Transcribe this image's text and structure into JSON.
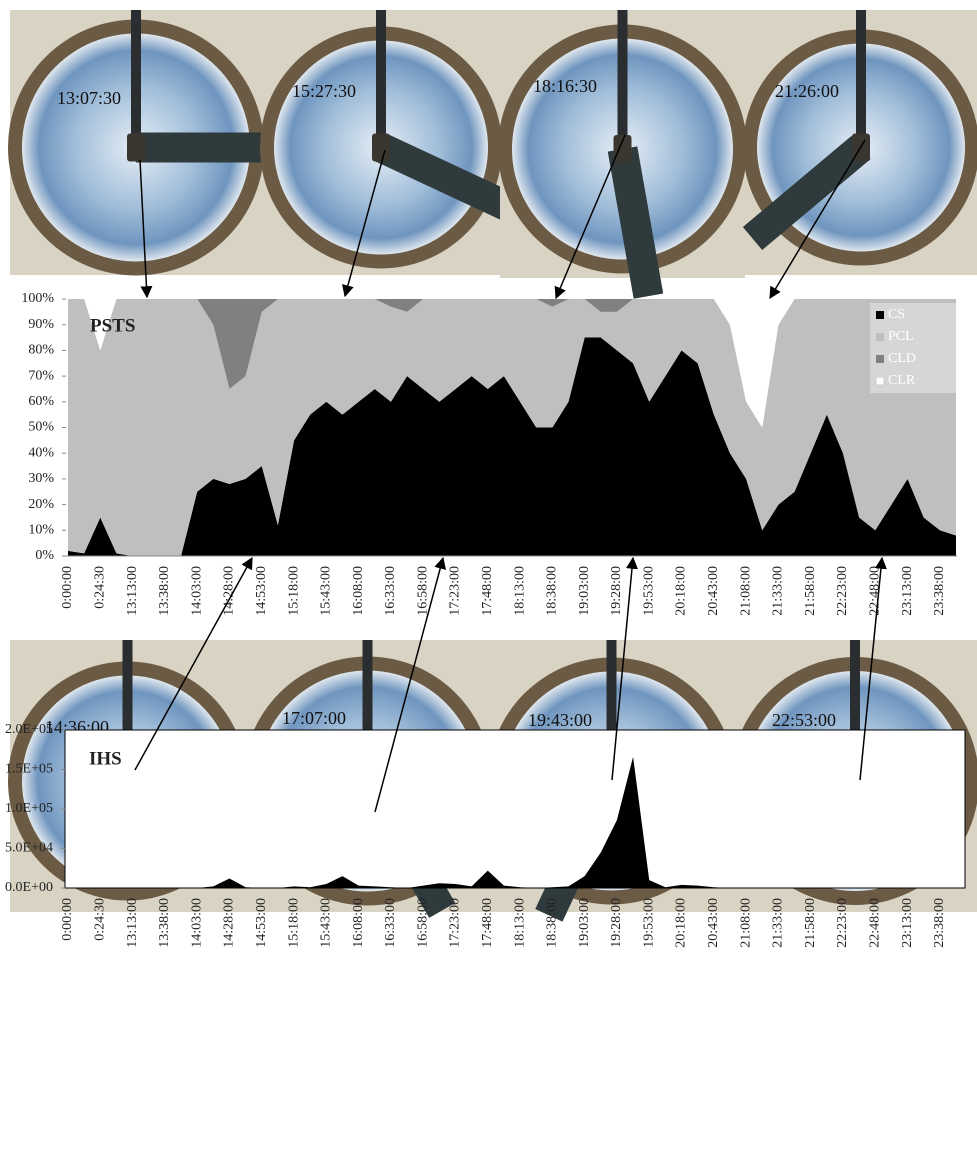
{
  "images_top": [
    "13:07:30",
    "15:27:30",
    "18:16:30",
    "21:26:00"
  ],
  "images_bottom": [
    "14:36:00",
    "17:07:00",
    "19:43:00",
    "22:53:00"
  ],
  "chart_data": [
    {
      "type": "stacked_area",
      "title": "PSTS",
      "categories": [
        "0:00:00",
        null,
        "0:24:30",
        null,
        "13:13:00",
        null,
        "13:38:00",
        null,
        "14:03:00",
        null,
        "14:28:00",
        null,
        "14:53:00",
        null,
        "15:18:00",
        null,
        "15:43:00",
        null,
        "16:08:00",
        null,
        "16:33:00",
        null,
        "16:58:00",
        null,
        "17:23:00",
        null,
        "17:48:00",
        null,
        "18:13:00",
        null,
        "18:38:00",
        null,
        "19:03:00",
        null,
        "19:28:00",
        null,
        "19:53:00",
        null,
        "20:18:00",
        null,
        "20:43:00",
        null,
        "21:08:00",
        null,
        "21:33:00",
        null,
        "21:58:00",
        null,
        "22:23:00",
        null,
        "22:48:00",
        null,
        "23:13:00",
        null,
        "23:38:00",
        null
      ],
      "series": [
        {
          "name": "CS",
          "color": "#000000",
          "values": [
            2,
            1,
            15,
            1,
            0,
            0,
            0,
            0,
            25,
            30,
            28,
            30,
            35,
            12,
            45,
            55,
            60,
            55,
            60,
            65,
            60,
            70,
            65,
            60,
            65,
            70,
            65,
            70,
            60,
            50,
            50,
            60,
            85,
            85,
            80,
            75,
            60,
            70,
            80,
            75,
            55,
            40,
            30,
            10,
            20,
            25,
            40,
            55,
            40,
            15,
            10,
            20,
            30,
            15,
            10,
            8
          ]
        },
        {
          "name": "PCL",
          "color": "#bfbfbf",
          "values": [
            98,
            99,
            65,
            99,
            100,
            100,
            100,
            100,
            75,
            60,
            37,
            40,
            60,
            88,
            55,
            45,
            40,
            45,
            40,
            35,
            37,
            25,
            35,
            40,
            35,
            30,
            35,
            30,
            40,
            50,
            47,
            40,
            15,
            10,
            15,
            25,
            40,
            30,
            20,
            25,
            45,
            50,
            30,
            40,
            70,
            75,
            60,
            45,
            60,
            85,
            90,
            80,
            70,
            85,
            90,
            92
          ]
        },
        {
          "name": "CLD",
          "color": "#808080",
          "values": [
            0,
            0,
            0,
            0,
            0,
            0,
            0,
            0,
            0,
            10,
            35,
            30,
            5,
            0,
            0,
            0,
            0,
            0,
            0,
            0,
            3,
            5,
            0,
            0,
            0,
            0,
            0,
            0,
            0,
            0,
            3,
            0,
            0,
            5,
            5,
            0,
            0,
            0,
            0,
            0,
            0,
            0,
            0,
            0,
            0,
            0,
            0,
            0,
            0,
            0,
            0,
            0,
            0,
            0,
            0,
            0
          ]
        },
        {
          "name": "CLR",
          "color": "#ffffff",
          "values": [
            0,
            0,
            20,
            0,
            0,
            0,
            0,
            0,
            0,
            0,
            0,
            0,
            0,
            0,
            0,
            0,
            0,
            0,
            0,
            0,
            0,
            0,
            0,
            0,
            0,
            0,
            0,
            0,
            0,
            0,
            0,
            0,
            0,
            0,
            0,
            0,
            0,
            0,
            0,
            0,
            0,
            10,
            40,
            50,
            10,
            0,
            0,
            0,
            0,
            0,
            0,
            0,
            0,
            0,
            0,
            0
          ]
        }
      ],
      "ylim": [
        0,
        100
      ],
      "yticks": [
        {
          "value": 0,
          "label": "0%"
        },
        {
          "value": 10,
          "label": "10%"
        },
        {
          "value": 20,
          "label": "20%"
        },
        {
          "value": 30,
          "label": "30%"
        },
        {
          "value": 40,
          "label": "40%"
        },
        {
          "value": 50,
          "label": "50%"
        },
        {
          "value": 60,
          "label": "60%"
        },
        {
          "value": 70,
          "label": "70%"
        },
        {
          "value": 80,
          "label": "80%"
        },
        {
          "value": 90,
          "label": "90%"
        },
        {
          "value": 100,
          "label": "100%"
        }
      ],
      "legend": "top-right"
    },
    {
      "type": "area",
      "title": "IHS",
      "categories": [
        "0:00:00",
        null,
        "0:24:30",
        null,
        "13:13:00",
        null,
        "13:38:00",
        null,
        "14:03:00",
        null,
        "14:28:00",
        null,
        "14:53:00",
        null,
        "15:18:00",
        null,
        "15:43:00",
        null,
        "16:08:00",
        null,
        "16:33:00",
        null,
        "16:58:00",
        null,
        "17:23:00",
        null,
        "17:48:00",
        null,
        "18:13:00",
        null,
        "18:38:00",
        null,
        "19:03:00",
        null,
        "19:28:00",
        null,
        "19:53:00",
        null,
        "20:18:00",
        null,
        "20:43:00",
        null,
        "21:08:00",
        null,
        "21:33:00",
        null,
        "21:58:00",
        null,
        "22:23:00",
        null,
        "22:48:00",
        null,
        "23:13:00",
        null,
        "23:38:00",
        null
      ],
      "values": [
        0,
        0,
        0,
        0,
        0,
        0,
        0,
        0,
        0,
        2000,
        12000,
        1000,
        0,
        0,
        2000,
        1000,
        5000,
        15000,
        3000,
        2000,
        1000,
        0,
        3000,
        6000,
        5000,
        2000,
        22000,
        3000,
        1000,
        0,
        1000,
        2000,
        15000,
        45000,
        86000,
        166000,
        10000,
        1000,
        4000,
        3000,
        1000,
        0,
        0,
        0,
        0,
        0,
        0,
        0,
        0,
        0,
        0,
        0,
        0,
        0,
        0,
        0
      ],
      "color": "#000000",
      "ylim": [
        0,
        200000
      ],
      "yticks": [
        {
          "value": 0,
          "label": "0.0E+00"
        },
        {
          "value": 50000,
          "label": "5.0E+04"
        },
        {
          "value": 100000,
          "label": "1.0E+05"
        },
        {
          "value": 150000,
          "label": "1.5E+05"
        },
        {
          "value": 200000,
          "label": "2.0E+05"
        }
      ]
    }
  ]
}
